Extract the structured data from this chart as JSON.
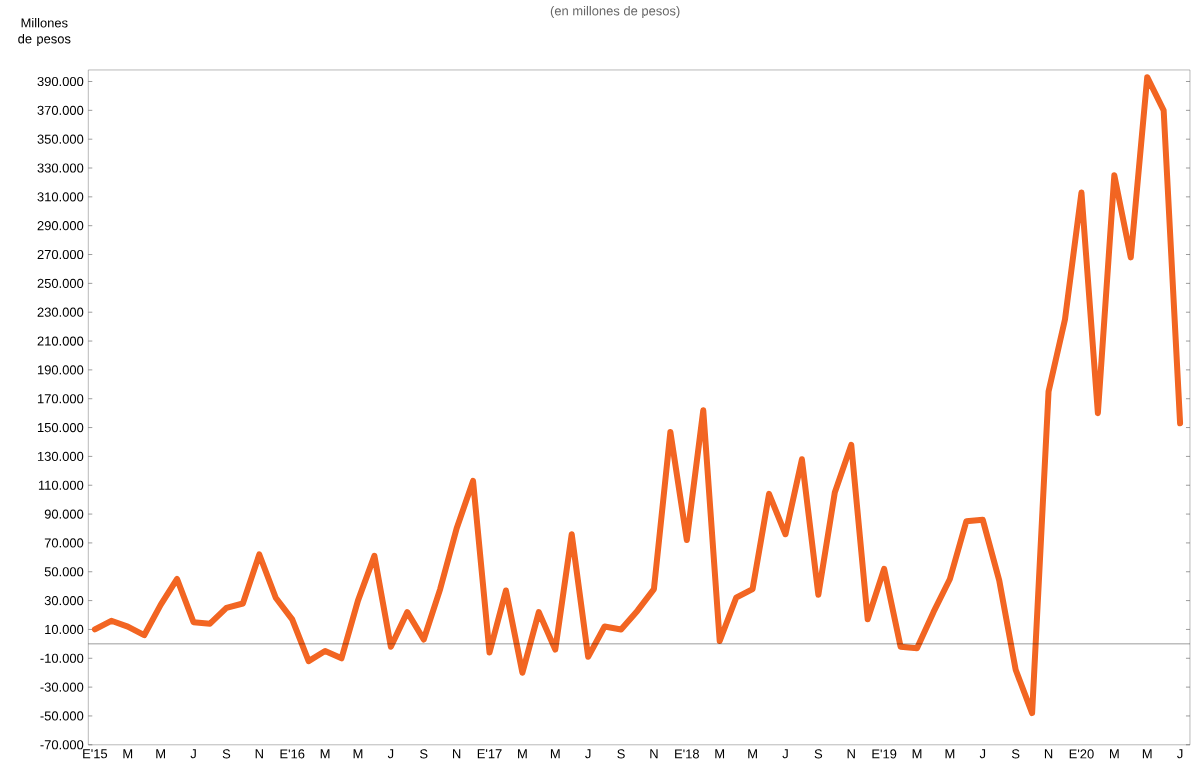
{
  "chart_data": {
    "type": "line",
    "subtitle": "(en millones de pesos)",
    "ylabel": "Millones de pesos",
    "categories": [
      "E'15",
      null,
      "M",
      null,
      "M",
      null,
      "J",
      null,
      "S",
      null,
      "N",
      null,
      "E'16",
      null,
      "M",
      null,
      "M",
      null,
      "J",
      null,
      "S",
      null,
      "N",
      null,
      "E'17",
      null,
      "M",
      null,
      "M",
      null,
      "J",
      null,
      "S",
      null,
      "N",
      null,
      "E'18",
      null,
      "M",
      null,
      "M",
      null,
      "J",
      null,
      "S",
      null,
      "N",
      null,
      "E'19",
      null,
      "M",
      null,
      "M",
      null,
      "J",
      null,
      "S",
      null,
      "N",
      null,
      "E'20",
      null,
      "M",
      null,
      "M",
      null,
      "J"
    ],
    "series": [
      {
        "color": "#f26522",
        "values": [
          10000,
          16000,
          12000,
          6000,
          27000,
          45000,
          15000,
          14000,
          25000,
          28000,
          62000,
          32000,
          17000,
          -12000,
          -5000,
          -10000,
          30000,
          61000,
          -2000,
          22000,
          3000,
          38000,
          80000,
          113000,
          -6000,
          37000,
          -20000,
          22000,
          -4000,
          76000,
          -9000,
          12000,
          10000,
          23000,
          38000,
          147000,
          72000,
          162000,
          2000,
          32000,
          38000,
          104000,
          76000,
          128000,
          34000,
          105000,
          138000,
          17000,
          52000,
          -2000,
          -3000,
          22000,
          45000,
          85000,
          86000,
          44000,
          -18000,
          -48000,
          175000,
          225000,
          313000,
          160000,
          325000,
          268000,
          393000,
          370000,
          153000
        ]
      }
    ],
    "ylim": [
      -70000,
      398000
    ],
    "yticks": [
      {
        "value": -70000,
        "label": "-70.000"
      },
      {
        "value": -50000,
        "label": "-50.000"
      },
      {
        "value": -30000,
        "label": "-30.000"
      },
      {
        "value": -10000,
        "label": "-10.000"
      },
      {
        "value": 10000,
        "label": "10.000"
      },
      {
        "value": 30000,
        "label": "30.000"
      },
      {
        "value": 50000,
        "label": "50.000"
      },
      {
        "value": 70000,
        "label": "70.000"
      },
      {
        "value": 90000,
        "label": "90.000"
      },
      {
        "value": 110000,
        "label": "110.000"
      },
      {
        "value": 130000,
        "label": "130.000"
      },
      {
        "value": 150000,
        "label": "150.000"
      },
      {
        "value": 170000,
        "label": "170.000"
      },
      {
        "value": 190000,
        "label": "190.000"
      },
      {
        "value": 210000,
        "label": "210.000"
      },
      {
        "value": 230000,
        "label": "230.000"
      },
      {
        "value": 250000,
        "label": "250.000"
      },
      {
        "value": 270000,
        "label": "270.000"
      },
      {
        "value": 290000,
        "label": "290.000"
      },
      {
        "value": 310000,
        "label": "310.000"
      },
      {
        "value": 330000,
        "label": "330.000"
      },
      {
        "value": 350000,
        "label": "350.000"
      },
      {
        "value": 370000,
        "label": "370.000"
      },
      {
        "value": 390000,
        "label": "390.000"
      }
    ],
    "ref_lines": [
      {
        "axis": "y",
        "value": 0,
        "color": "#000000"
      }
    ],
    "grid": false,
    "legend": false,
    "marker": "none",
    "line_style": "solid"
  }
}
